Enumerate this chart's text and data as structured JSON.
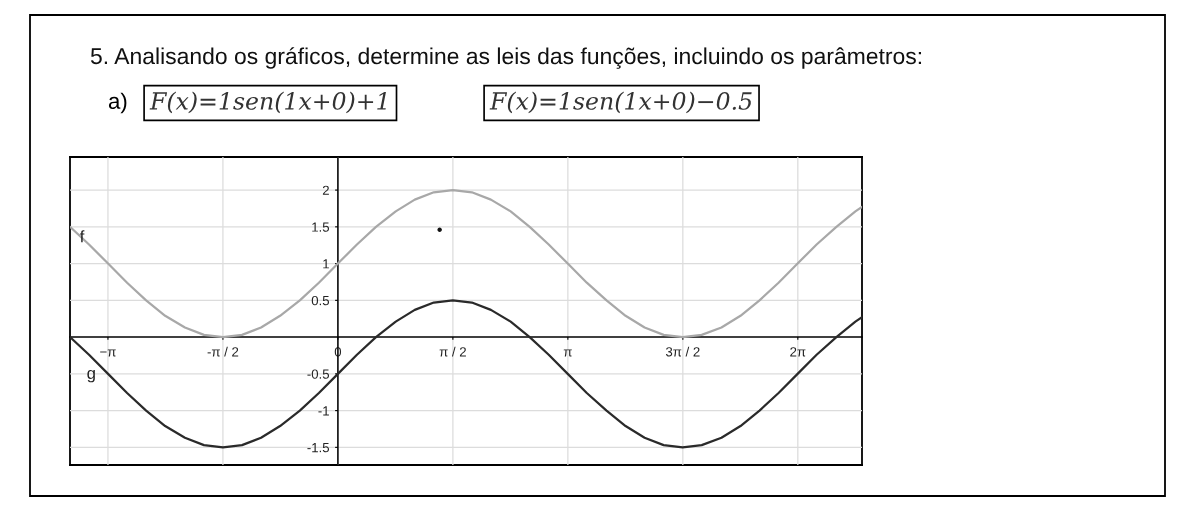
{
  "chart_data": {
    "type": "line",
    "title": "5. Analisando os gráficos, determine as leis das funções, incluindo os parâmetros:",
    "annotations": [
      "a)",
      "F(x)=1sen(1x+0)+1",
      "F(x)=1sen(1x+0)−0.5"
    ],
    "x": [
      -3.66,
      -3.4,
      -3.14,
      -2.88,
      -2.62,
      -2.36,
      -2.09,
      -1.83,
      -1.57,
      -1.31,
      -1.05,
      -0.79,
      -0.52,
      -0.26,
      0,
      0.26,
      0.52,
      0.79,
      1.05,
      1.31,
      1.57,
      1.83,
      2.09,
      2.36,
      2.62,
      2.88,
      3.14,
      3.4,
      3.67,
      3.93,
      4.19,
      4.45,
      4.71,
      4.97,
      5.24,
      5.5,
      5.76,
      6.02,
      6.28,
      6.54,
      6.81,
      7.07,
      7.16
    ],
    "series": [
      {
        "name": "f",
        "color": "#a8a8a8",
        "values": [
          1.5,
          1.26,
          1,
          0.74,
          0.5,
          0.29,
          0.13,
          0.03,
          0,
          0.03,
          0.13,
          0.29,
          0.5,
          0.74,
          1,
          1.26,
          1.5,
          1.71,
          1.87,
          1.97,
          2,
          1.97,
          1.87,
          1.71,
          1.5,
          1.26,
          1,
          0.74,
          0.5,
          0.29,
          0.13,
          0.03,
          0,
          0.03,
          0.13,
          0.29,
          0.5,
          0.74,
          1,
          1.26,
          1.5,
          1.71,
          1.77
        ]
      },
      {
        "name": "g",
        "color": "#2a2a2a",
        "values": [
          0,
          -0.24,
          -0.5,
          -0.76,
          -1,
          -1.21,
          -1.37,
          -1.47,
          -1.5,
          -1.47,
          -1.37,
          -1.21,
          -1,
          -0.76,
          -0.5,
          -0.24,
          0,
          0.21,
          0.37,
          0.47,
          0.5,
          0.47,
          0.37,
          0.21,
          0,
          -0.24,
          -0.5,
          -0.76,
          -1,
          -1.21,
          -1.37,
          -1.47,
          -1.5,
          -1.47,
          -1.37,
          -1.21,
          -1,
          -0.76,
          -0.5,
          -0.24,
          0,
          0.21,
          0.27
        ]
      },
      {
        "type": "scatter",
        "color": "#111111",
        "marker": "circle",
        "x": [
          1.39
        ],
        "values": [
          1.46
        ]
      }
    ],
    "xlim": [
      -3.66,
      7.16
    ],
    "ylim": [
      -1.74,
      2.45
    ],
    "xticks": [
      {
        "value": -3.1416,
        "label": "−π"
      },
      {
        "value": -1.5708,
        "label": "-π / 2"
      },
      0,
      {
        "value": 1.5708,
        "label": "π / 2"
      },
      {
        "value": 3.1416,
        "label": "π"
      },
      {
        "value": 4.7124,
        "label": "3π / 2"
      },
      {
        "value": 6.2832,
        "label": "2π"
      }
    ],
    "yticks": [
      -1.5,
      -1,
      -0.5,
      0.5,
      1,
      1.5,
      2
    ],
    "grid": true
  }
}
